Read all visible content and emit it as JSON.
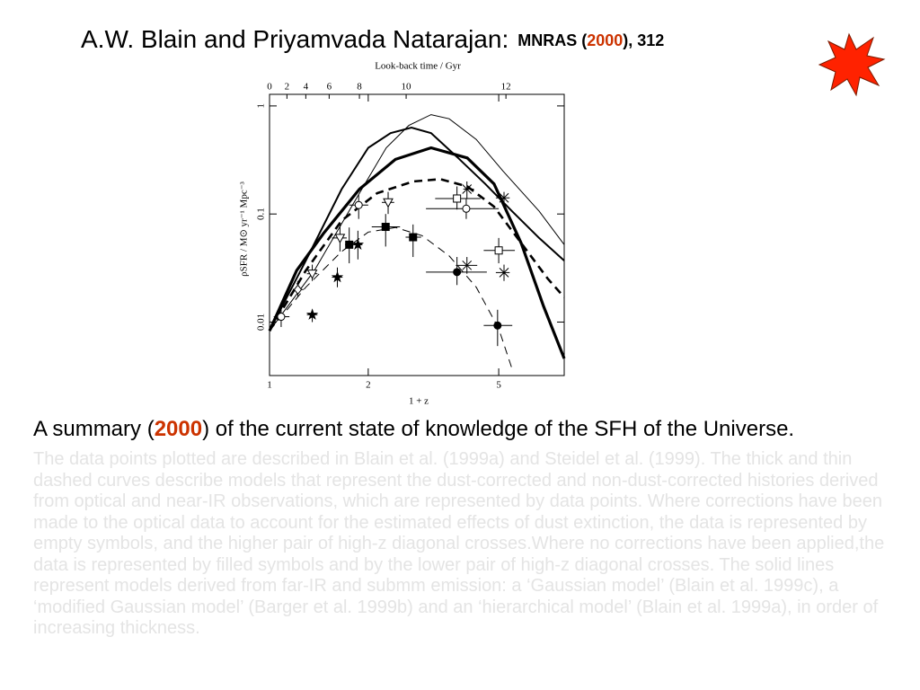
{
  "header": {
    "authors": "A.W. Blain and Priyamvada Natarajan:",
    "journal": "MNRAS (",
    "year": "2000",
    "ref_tail": "), 312"
  },
  "chart_data": {
    "type": "line",
    "xlabel": "1 + z",
    "ylabel": "ρSFR / M⊙ yr⁻¹ Mpc⁻³",
    "x2label": "Look-back time / Gyr",
    "xlim": [
      1,
      7.92
    ],
    "ylim": [
      0.0032,
      1.28
    ],
    "xscale": "log",
    "yscale": "log",
    "xticks": [
      1,
      2,
      5
    ],
    "yticks": [
      0.01,
      0.1,
      1
    ],
    "x2ticks": [
      {
        "value": 1,
        "label": "0"
      },
      {
        "value": 1.13,
        "label": "2"
      },
      {
        "value": 1.29,
        "label": "4"
      },
      {
        "value": 1.52,
        "label": "6"
      },
      {
        "value": 1.88,
        "label": "8"
      },
      {
        "value": 2.61,
        "label": "10"
      },
      {
        "value": 5.26,
        "label": "12"
      }
    ],
    "series": [
      {
        "color": "#000",
        "width": 1,
        "dashed": false,
        "x": [
          1,
          1.37,
          1.88,
          2.27,
          2.66,
          3.11,
          3.53,
          4.27,
          5.15,
          6.64,
          7.92
        ],
        "values": [
          0.0083,
          0.03,
          0.156,
          0.41,
          0.66,
          0.83,
          0.76,
          0.49,
          0.25,
          0.106,
          0.052
        ]
      },
      {
        "color": "#000",
        "width": 2,
        "dashed": false,
        "x": [
          1,
          1.29,
          1.66,
          2.0,
          2.34,
          2.71,
          3.11,
          3.76,
          4.55,
          5.49,
          6.64,
          7.92
        ],
        "values": [
          0.0083,
          0.037,
          0.17,
          0.41,
          0.56,
          0.63,
          0.56,
          0.33,
          0.19,
          0.106,
          0.06,
          0.037
        ]
      },
      {
        "color": "#000",
        "width": 3.2,
        "dashed": false,
        "x": [
          1,
          1.21,
          1.46,
          1.88,
          2.42,
          3.11,
          4.01,
          4.84,
          5.85,
          6.85,
          7.92
        ],
        "values": [
          0.0083,
          0.03,
          0.066,
          0.17,
          0.32,
          0.41,
          0.33,
          0.19,
          0.054,
          0.014,
          0.0046
        ]
      },
      {
        "color": "#000",
        "width": 2.6,
        "dashed": true,
        "x": [
          1,
          1.29,
          1.66,
          2.13,
          2.74,
          3.32,
          4.01,
          4.84,
          5.85,
          7.07,
          7.92
        ],
        "values": [
          0.0083,
          0.03,
          0.087,
          0.156,
          0.2,
          0.21,
          0.18,
          0.117,
          0.054,
          0.025,
          0.017
        ]
      },
      {
        "color": "#000",
        "width": 1,
        "dashed": true,
        "x": [
          1,
          1.29,
          1.66,
          2.0,
          2.42,
          2.92,
          3.53,
          4.27,
          5.0,
          5.49
        ],
        "values": [
          0.0083,
          0.021,
          0.045,
          0.068,
          0.075,
          0.063,
          0.041,
          0.021,
          0.0087,
          0.0037
        ]
      }
    ],
    "points": [
      {
        "symbol": "open-circle",
        "x": 1.085,
        "y": 0.0112,
        "x_range": [
          1.03,
          1.15
        ],
        "y_range": [
          0.009,
          0.014
        ]
      },
      {
        "symbol": "filled-star",
        "x": 1.35,
        "y": 0.0117,
        "x_range": [
          1.3,
          1.4
        ],
        "y_range": [
          0.01,
          0.013
        ]
      },
      {
        "symbol": "filled-star",
        "x": 1.61,
        "y": 0.026,
        "x_range": [
          1.55,
          1.67
        ],
        "y_range": [
          0.021,
          0.032
        ]
      },
      {
        "symbol": "filled-star",
        "x": 1.86,
        "y": 0.052,
        "x_range": [
          1.8,
          1.92
        ],
        "y_range": [
          0.038,
          0.07
        ]
      },
      {
        "symbol": "filled-square",
        "x": 1.75,
        "y": 0.052,
        "x_range": [
          1.7,
          1.82
        ],
        "y_range": [
          0.035,
          0.075
        ]
      },
      {
        "symbol": "filled-square",
        "x": 2.26,
        "y": 0.076,
        "x_range": [
          2.05,
          2.5
        ],
        "y_range": [
          0.05,
          0.1
        ]
      },
      {
        "symbol": "filled-square",
        "x": 2.74,
        "y": 0.061,
        "x_range": [
          2.6,
          2.9
        ],
        "y_range": [
          0.04,
          0.08
        ]
      },
      {
        "symbol": "open-diamond",
        "x": 1.22,
        "y": 0.02,
        "x_range": [
          1.18,
          1.27
        ],
        "y_range": [
          0.017,
          0.024
        ]
      },
      {
        "symbol": "open-triangle",
        "x": 1.35,
        "y": 0.028,
        "x_range": [
          1.3,
          1.4
        ],
        "y_range": [
          0.024,
          0.034
        ]
      },
      {
        "symbol": "open-triangle",
        "x": 1.64,
        "y": 0.06,
        "x_range": [
          1.55,
          1.72
        ],
        "y_range": [
          0.045,
          0.08
        ]
      },
      {
        "symbol": "open-circle",
        "x": 1.87,
        "y": 0.121,
        "x_range": [
          1.75,
          2.0
        ],
        "y_range": [
          0.09,
          0.15
        ]
      },
      {
        "symbol": "open-triangle",
        "x": 2.3,
        "y": 0.128,
        "x_range": [
          2.2,
          2.4
        ],
        "y_range": [
          0.1,
          0.16
        ]
      },
      {
        "symbol": "open-square",
        "x": 3.73,
        "y": 0.139,
        "x_range": [
          3.2,
          4.4
        ],
        "y_range": [
          0.11,
          0.18
        ]
      },
      {
        "symbol": "open-circle",
        "x": 3.98,
        "y": 0.112,
        "x_range": [
          3.0,
          5.0
        ],
        "y_range": [
          0.09,
          0.14
        ]
      },
      {
        "symbol": "open-square",
        "x": 5.0,
        "y": 0.046,
        "x_range": [
          4.5,
          5.6
        ],
        "y_range": [
          0.035,
          0.06
        ]
      },
      {
        "symbol": "filled-circle",
        "x": 3.73,
        "y": 0.029,
        "x_range": [
          3.0,
          4.6
        ],
        "y_range": [
          0.022,
          0.04
        ]
      },
      {
        "symbol": "filled-circle",
        "x": 4.96,
        "y": 0.0093,
        "x_range": [
          4.5,
          5.5
        ],
        "y_range": [
          0.006,
          0.013
        ]
      },
      {
        "symbol": "cross",
        "x": 4.0,
        "y": 0.0335,
        "x_range": [
          3.7,
          4.3
        ],
        "y_range": [
          0.028,
          0.04
        ]
      },
      {
        "symbol": "cross",
        "x": 5.19,
        "y": 0.0287,
        "x_range": [
          4.9,
          5.4
        ],
        "y_range": [
          0.024,
          0.034
        ]
      },
      {
        "symbol": "cross",
        "x": 4.0,
        "y": 0.17,
        "x_range": [
          3.9,
          4.2
        ],
        "y_range": [
          0.14,
          0.2
        ]
      },
      {
        "symbol": "cross",
        "x": 5.19,
        "y": 0.141,
        "x_range": [
          4.9,
          5.4
        ],
        "y_range": [
          0.12,
          0.16
        ]
      }
    ]
  },
  "caption": {
    "lead": "A summary (",
    "year": "2000",
    "lead_tail": ") of the current state of knowledge of the SFH of the Universe.",
    "body": "The data points plotted are described in Blain et al. (1999a) and Steidel et al. (1999). The thick and thin dashed curves describe models that represent the dust-corrected and non-dust-corrected histories derived from optical and near-IR observations, which are represented by data points. Where corrections have been made to the optical data to account for the estimated effects of dust extinction, the data is represented by empty symbols, and the higher pair of high-z diagonal crosses.Where no corrections have been applied,the data is represented by filled symbols and by the lower pair of high-z diagonal crosses. The solid lines represent models derived from far-IR and submm emission: a ‘Gaussian model’ (Blain et al. 1999c), a ‘modified Gaussian model’ (Barger et al. 1999b) and an ‘hierarchical model’ (Blain et al. 1999a), in order of increasing thickness."
  }
}
